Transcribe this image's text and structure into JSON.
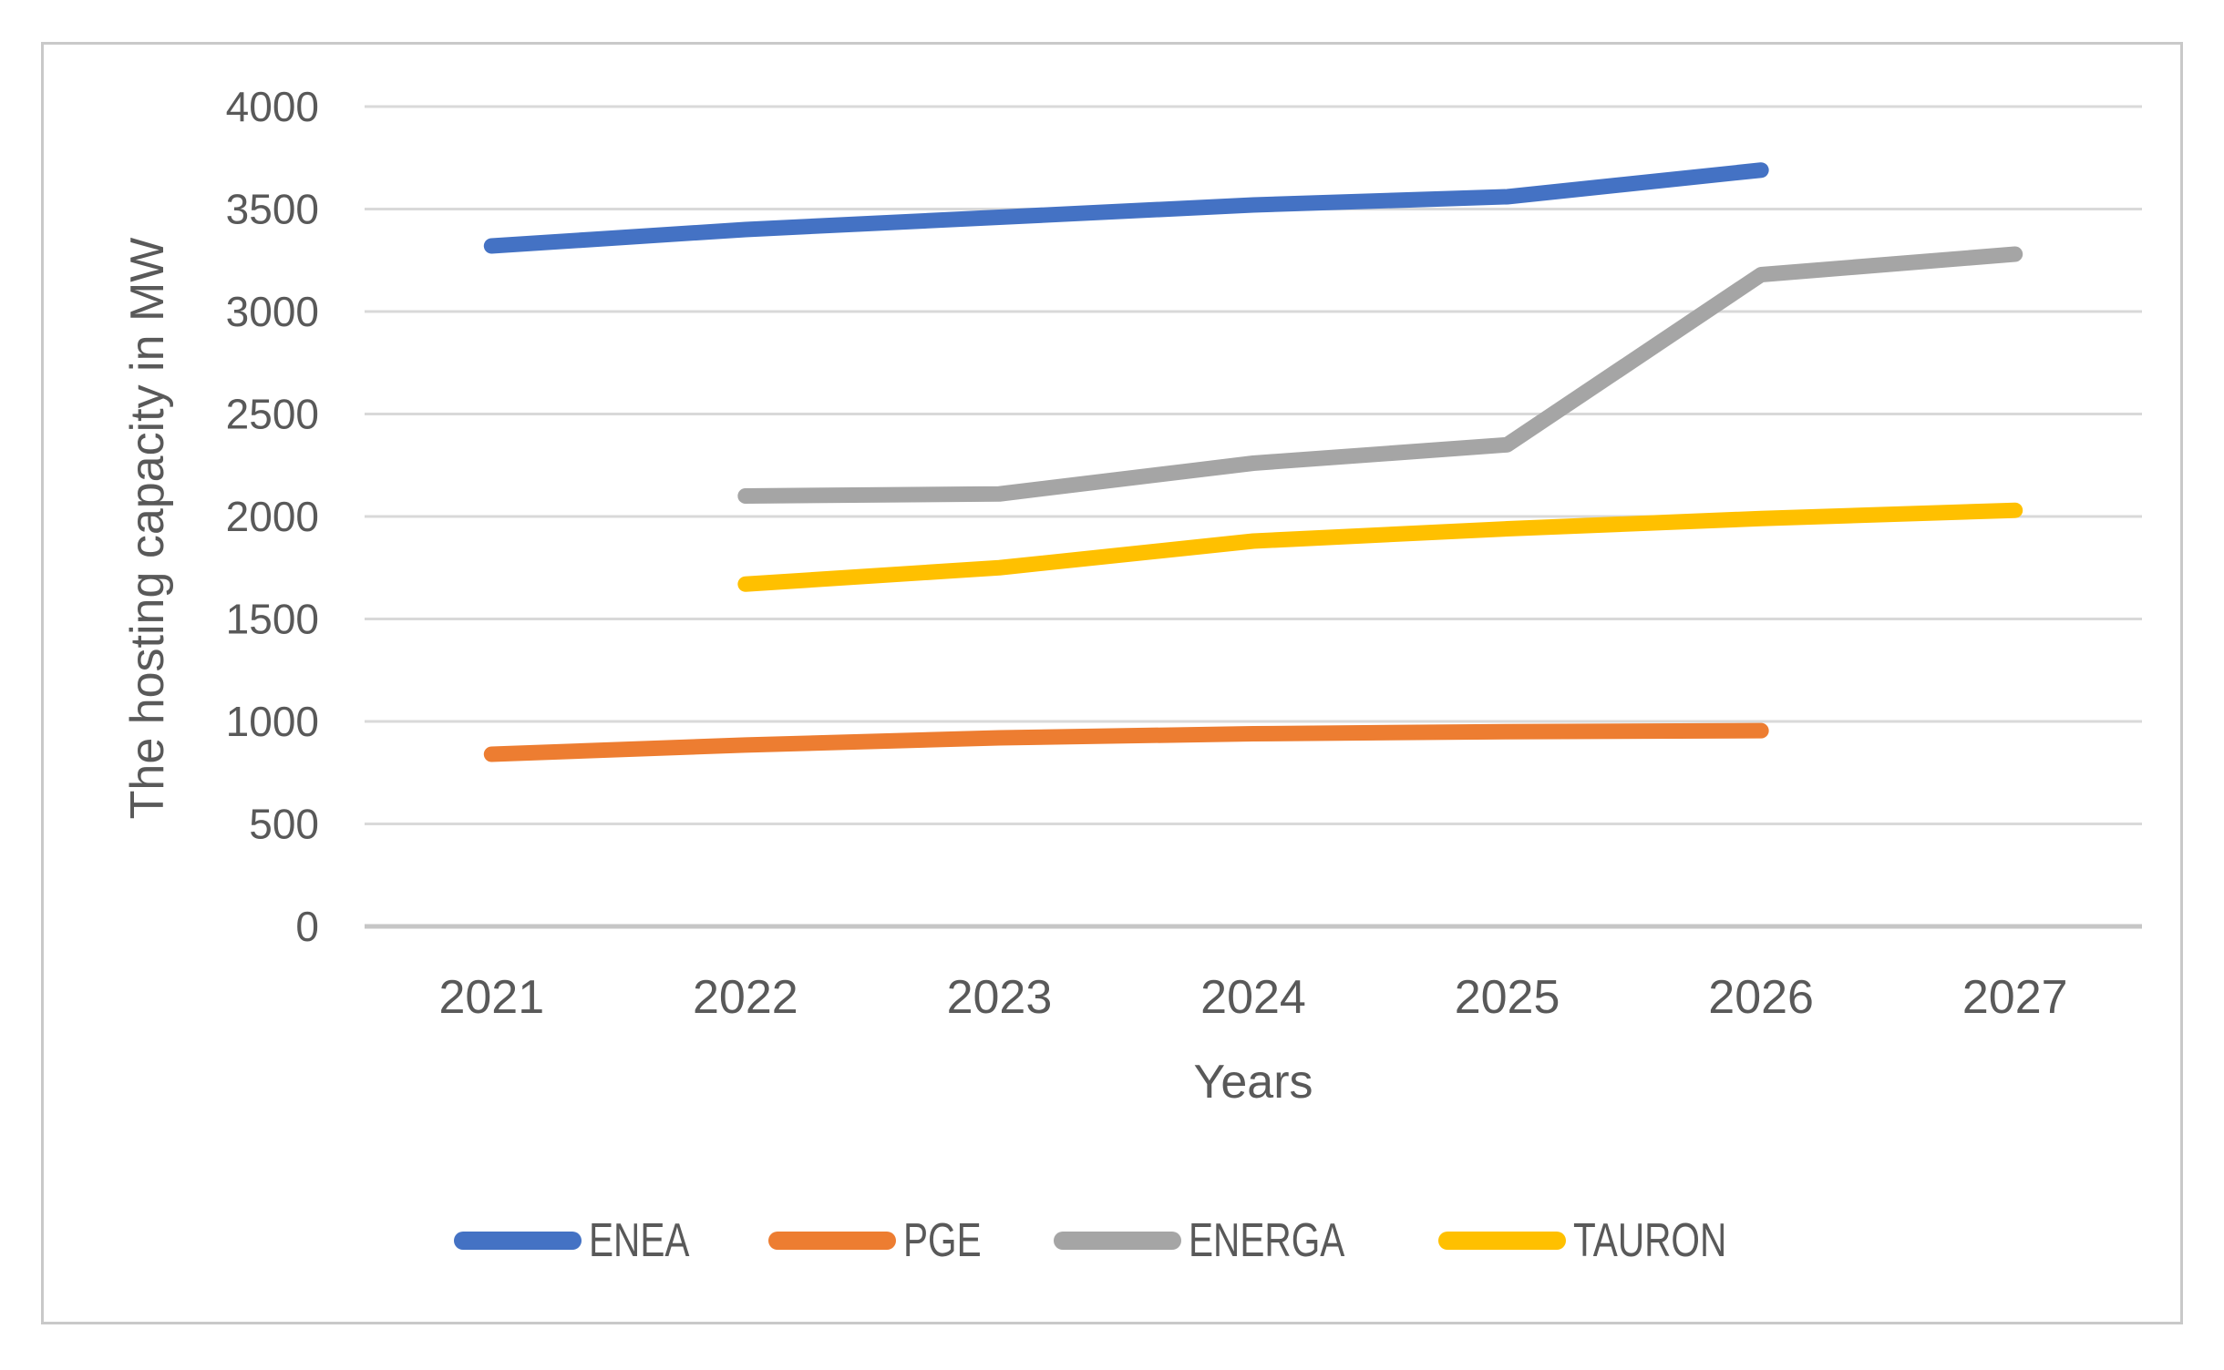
{
  "figure": {
    "y_axis_title": "The hosting capacity in MW",
    "x_axis_title": "Years"
  },
  "chart_data": {
    "type": "line",
    "title": "",
    "xlabel": "Years",
    "ylabel": "The hosting capacity in MW",
    "categories": [
      "2021",
      "2022",
      "2023",
      "2024",
      "2025",
      "2026",
      "2027"
    ],
    "series": [
      {
        "name": "ENEA",
        "color": "#4472C4",
        "values": [
          3320,
          3400,
          3460,
          3520,
          3560,
          3690,
          null
        ]
      },
      {
        "name": "PGE",
        "color": "#ED7D31",
        "values": [
          840,
          885,
          920,
          940,
          950,
          955,
          null
        ]
      },
      {
        "name": "ENERGA",
        "color": "#A5A5A5",
        "values": [
          null,
          2100,
          2110,
          2260,
          2350,
          3180,
          3280
        ]
      },
      {
        "name": "TAURON",
        "color": "#FFC000",
        "values": [
          null,
          1670,
          1750,
          1880,
          1940,
          1990,
          2030
        ]
      }
    ],
    "ylim": [
      0,
      4000
    ],
    "yticks": [
      0,
      500,
      1000,
      1500,
      2000,
      2500,
      3000,
      3500,
      4000
    ],
    "grid": "horizontal",
    "legend_position": "bottom",
    "line_width": 17
  },
  "style": {
    "gridline_color": "#D9D9D9",
    "axis_line_color": "#C6C6C6",
    "text_color": "#595959",
    "border_color": "#C9C9C9",
    "background": "#FFFFFF"
  }
}
